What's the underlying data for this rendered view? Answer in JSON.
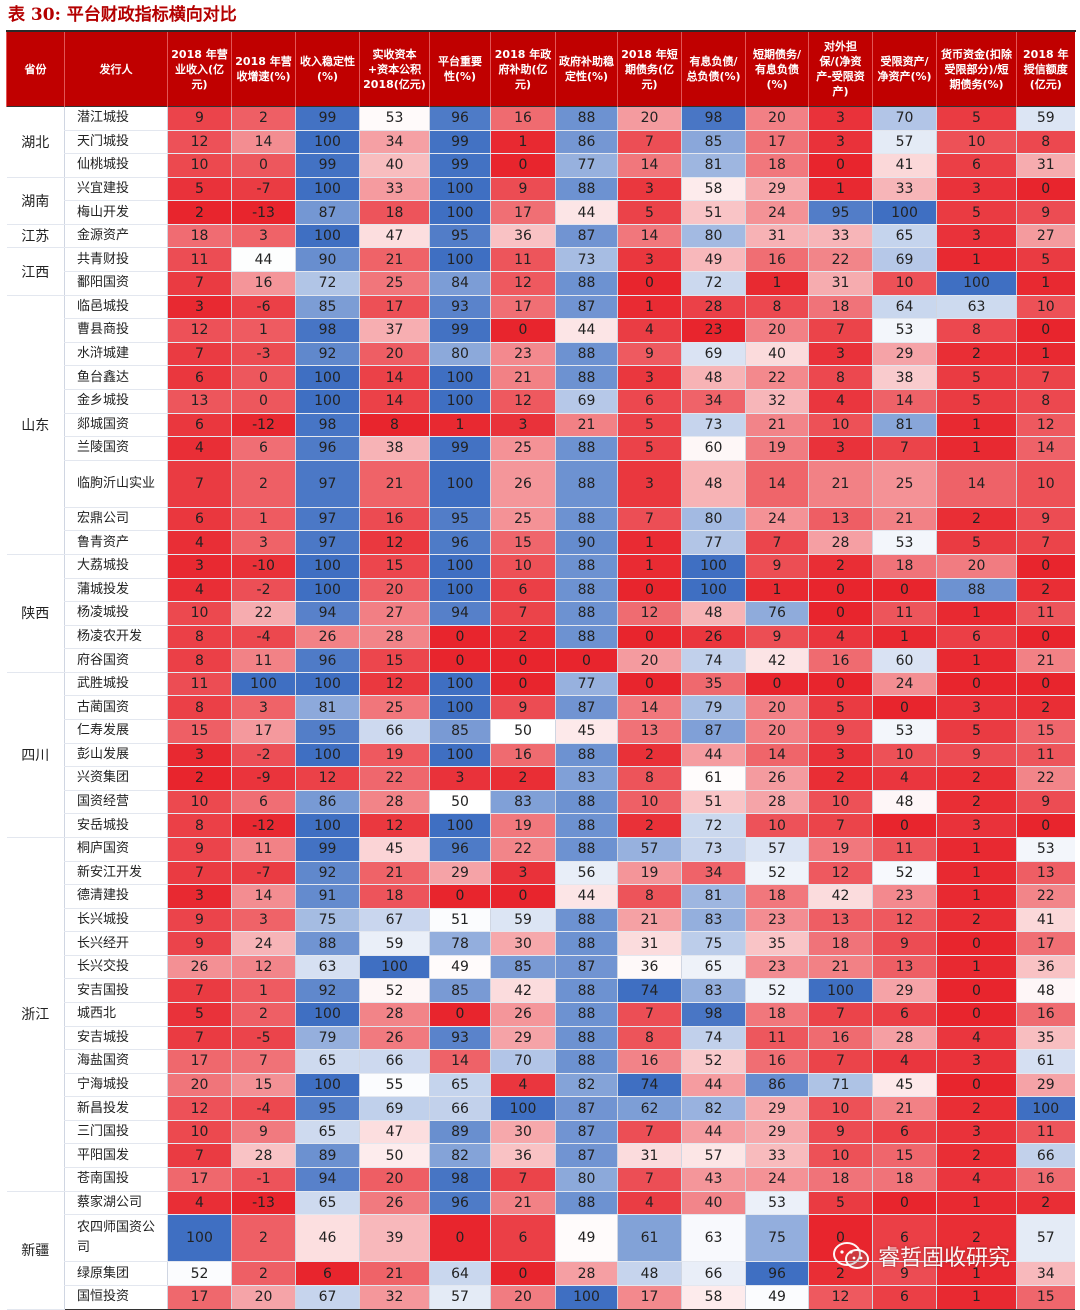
{
  "title": "表 30:  平台财政指标横向对比",
  "watermark": "睿哲固收研究",
  "colors": {
    "header_bg": "#c00000",
    "blue_max": "#3f6fc2",
    "red_max": "#e8252d"
  },
  "columns": [
    {
      "label": "省份"
    },
    {
      "label": "发行人"
    },
    {
      "label": "2018 年营业收入(亿元)"
    },
    {
      "label": "2018 年营收增速(%)"
    },
    {
      "label": "收入稳定性(%)"
    },
    {
      "label": "实收资本+资本公积 2018(亿元)"
    },
    {
      "label": "平台重要性(%)"
    },
    {
      "label": "2018 年政府补助(亿元)"
    },
    {
      "label": "政府补助稳定性(%)"
    },
    {
      "label": "2018 年短期债务(亿元)"
    },
    {
      "label": "有息负债/总负债(%)"
    },
    {
      "label": "短期债务/有息负债(%)"
    },
    {
      "label": "对外担保/(净资产-受限资产)"
    },
    {
      "label": "受限资产/净资产(%)"
    },
    {
      "label": "货币资金(扣除受限部分)/短期债务(%)"
    },
    {
      "label": "2018 年授信额度(亿元)"
    }
  ],
  "groups": [
    {
      "province": "湖北",
      "rows": [
        {
          "issuer": "潜江城投",
          "values": [
            9,
            2,
            99,
            53,
            96,
            16,
            88,
            20,
            98,
            20,
            3,
            70,
            5,
            59
          ]
        },
        {
          "issuer": "天门城投",
          "values": [
            12,
            14,
            100,
            34,
            99,
            1,
            86,
            7,
            85,
            17,
            3,
            57,
            10,
            8
          ]
        },
        {
          "issuer": "仙桃城投",
          "values": [
            10,
            0,
            99,
            40,
            99,
            0,
            77,
            14,
            81,
            18,
            0,
            41,
            6,
            31
          ]
        }
      ]
    },
    {
      "province": "湖南",
      "rows": [
        {
          "issuer": "兴宜建投",
          "values": [
            5,
            -7,
            100,
            33,
            100,
            9,
            88,
            3,
            58,
            29,
            1,
            33,
            3,
            0
          ]
        },
        {
          "issuer": "梅山开发",
          "values": [
            2,
            -13,
            87,
            18,
            100,
            17,
            44,
            5,
            51,
            24,
            95,
            100,
            5,
            9
          ]
        }
      ]
    },
    {
      "province": "江苏",
      "rows": [
        {
          "issuer": "金源资产",
          "values": [
            18,
            3,
            100,
            47,
            95,
            36,
            87,
            14,
            80,
            31,
            33,
            65,
            3,
            27
          ]
        }
      ]
    },
    {
      "province": "江西",
      "rows": [
        {
          "issuer": "共青财投",
          "values": [
            11,
            44,
            90,
            21,
            100,
            11,
            73,
            3,
            49,
            16,
            22,
            69,
            1,
            5
          ]
        },
        {
          "issuer": "鄱阳国资",
          "values": [
            7,
            16,
            72,
            25,
            84,
            12,
            88,
            0,
            72,
            1,
            31,
            10,
            100,
            1
          ]
        }
      ]
    },
    {
      "province": "山东",
      "rows": [
        {
          "issuer": "临邑城投",
          "values": [
            3,
            -6,
            85,
            17,
            93,
            17,
            87,
            1,
            28,
            8,
            18,
            64,
            63,
            10
          ]
        },
        {
          "issuer": "曹县商投",
          "values": [
            12,
            1,
            98,
            37,
            99,
            0,
            44,
            4,
            23,
            20,
            7,
            53,
            8,
            0
          ]
        },
        {
          "issuer": "水浒城建",
          "values": [
            7,
            -3,
            92,
            20,
            80,
            23,
            88,
            9,
            69,
            40,
            3,
            29,
            2,
            1
          ]
        },
        {
          "issuer": "鱼台鑫达",
          "values": [
            6,
            0,
            100,
            14,
            100,
            21,
            88,
            3,
            48,
            22,
            8,
            38,
            5,
            7
          ]
        },
        {
          "issuer": "金乡城投",
          "values": [
            13,
            0,
            100,
            14,
            100,
            12,
            69,
            6,
            34,
            32,
            4,
            14,
            5,
            8
          ]
        },
        {
          "issuer": "郯城国资",
          "values": [
            6,
            -12,
            98,
            8,
            1,
            3,
            21,
            5,
            73,
            21,
            10,
            81,
            1,
            12
          ]
        },
        {
          "issuer": "兰陵国资",
          "values": [
            4,
            6,
            96,
            38,
            99,
            25,
            88,
            5,
            60,
            19,
            3,
            7,
            1,
            14
          ]
        },
        {
          "issuer": "临朐沂山实业",
          "values": [
            7,
            2,
            97,
            21,
            100,
            26,
            88,
            3,
            48,
            14,
            21,
            25,
            14,
            10
          ]
        },
        {
          "issuer": "宏鼎公司",
          "values": [
            6,
            1,
            97,
            16,
            95,
            25,
            88,
            7,
            80,
            24,
            13,
            21,
            2,
            9
          ]
        },
        {
          "issuer": "鲁青资产",
          "values": [
            4,
            3,
            97,
            12,
            96,
            15,
            90,
            1,
            77,
            7,
            28,
            53,
            5,
            7
          ]
        }
      ]
    },
    {
      "province": "陕西",
      "rows": [
        {
          "issuer": "大荔城投",
          "values": [
            3,
            -10,
            100,
            15,
            100,
            10,
            88,
            1,
            100,
            9,
            2,
            18,
            20,
            0
          ]
        },
        {
          "issuer": "蒲城投发",
          "values": [
            4,
            -2,
            100,
            20,
            100,
            6,
            88,
            0,
            100,
            1,
            0,
            0,
            88,
            2
          ]
        },
        {
          "issuer": "杨凌城投",
          "values": [
            10,
            22,
            94,
            27,
            94,
            7,
            88,
            12,
            48,
            76,
            0,
            11,
            1,
            11
          ]
        },
        {
          "issuer": "杨凌农开发",
          "values": [
            8,
            -4,
            26,
            28,
            0,
            2,
            88,
            0,
            26,
            9,
            4,
            1,
            6,
            0
          ]
        },
        {
          "issuer": "府谷国资",
          "values": [
            8,
            11,
            96,
            15,
            0,
            0,
            0,
            20,
            74,
            42,
            16,
            60,
            1,
            21
          ]
        }
      ]
    },
    {
      "province": "四川",
      "rows": [
        {
          "issuer": "武胜城投",
          "values": [
            11,
            100,
            100,
            12,
            100,
            0,
            77,
            0,
            35,
            0,
            0,
            24,
            0,
            0
          ]
        },
        {
          "issuer": "古蔺国资",
          "values": [
            8,
            3,
            81,
            25,
            100,
            9,
            87,
            14,
            79,
            20,
            5,
            0,
            3,
            2
          ]
        },
        {
          "issuer": "仁寿发展",
          "values": [
            15,
            17,
            95,
            66,
            85,
            50,
            45,
            13,
            87,
            20,
            9,
            53,
            5,
            15
          ]
        },
        {
          "issuer": "彭山发展",
          "values": [
            3,
            -2,
            100,
            19,
            100,
            16,
            88,
            2,
            44,
            14,
            3,
            10,
            9,
            11
          ]
        },
        {
          "issuer": "兴资集团",
          "values": [
            2,
            -9,
            12,
            22,
            3,
            2,
            83,
            8,
            61,
            26,
            2,
            4,
            2,
            22
          ]
        },
        {
          "issuer": "国资经营",
          "values": [
            10,
            6,
            86,
            28,
            50,
            83,
            88,
            10,
            51,
            28,
            10,
            48,
            2,
            9
          ]
        },
        {
          "issuer": "安岳城投",
          "values": [
            8,
            -12,
            100,
            12,
            100,
            19,
            88,
            2,
            72,
            10,
            7,
            0,
            3,
            0
          ]
        }
      ]
    },
    {
      "province": "浙江",
      "rows": [
        {
          "issuer": "桐庐国资",
          "values": [
            9,
            11,
            99,
            45,
            96,
            22,
            88,
            57,
            73,
            57,
            19,
            11,
            1,
            53
          ]
        },
        {
          "issuer": "新安江开发",
          "values": [
            7,
            -7,
            92,
            21,
            29,
            3,
            56,
            19,
            34,
            52,
            12,
            52,
            1,
            13
          ]
        },
        {
          "issuer": "德清建投",
          "values": [
            3,
            14,
            91,
            18,
            0,
            0,
            44,
            8,
            81,
            18,
            42,
            23,
            1,
            22
          ]
        },
        {
          "issuer": "长兴城投",
          "values": [
            9,
            3,
            75,
            67,
            51,
            59,
            88,
            21,
            83,
            23,
            13,
            12,
            2,
            41
          ]
        },
        {
          "issuer": "长兴经开",
          "values": [
            9,
            24,
            88,
            59,
            78,
            30,
            88,
            31,
            75,
            35,
            18,
            9,
            0,
            17
          ]
        },
        {
          "issuer": "长兴交投",
          "values": [
            26,
            12,
            63,
            100,
            49,
            85,
            87,
            36,
            65,
            23,
            21,
            13,
            1,
            36
          ]
        },
        {
          "issuer": "安吉国投",
          "values": [
            7,
            1,
            92,
            52,
            85,
            42,
            88,
            74,
            83,
            52,
            100,
            29,
            0,
            48
          ]
        },
        {
          "issuer": "城西北",
          "values": [
            5,
            2,
            100,
            28,
            0,
            26,
            88,
            7,
            98,
            18,
            7,
            6,
            0,
            16
          ]
        },
        {
          "issuer": "安吉城投",
          "values": [
            7,
            -5,
            79,
            26,
            93,
            29,
            88,
            8,
            74,
            11,
            16,
            28,
            4,
            35
          ]
        },
        {
          "issuer": "海盐国资",
          "values": [
            17,
            7,
            65,
            66,
            14,
            70,
            88,
            16,
            52,
            16,
            7,
            4,
            3,
            61
          ]
        },
        {
          "issuer": "宁海城投",
          "values": [
            20,
            15,
            100,
            55,
            65,
            4,
            82,
            74,
            44,
            86,
            71,
            45,
            0,
            29
          ]
        },
        {
          "issuer": "新昌投发",
          "values": [
            12,
            -4,
            95,
            69,
            66,
            100,
            87,
            62,
            82,
            29,
            10,
            21,
            2,
            100
          ]
        },
        {
          "issuer": "三门国投",
          "values": [
            10,
            9,
            65,
            47,
            89,
            30,
            87,
            7,
            44,
            29,
            9,
            6,
            3,
            11
          ]
        },
        {
          "issuer": "平阳国发",
          "values": [
            7,
            28,
            89,
            50,
            82,
            36,
            87,
            31,
            57,
            33,
            10,
            15,
            2,
            66
          ]
        },
        {
          "issuer": "苍南国投",
          "values": [
            17,
            -1,
            94,
            20,
            98,
            7,
            80,
            7,
            43,
            24,
            18,
            18,
            4,
            16
          ]
        }
      ]
    },
    {
      "province": "新疆",
      "rows": [
        {
          "issuer": "蔡家湖公司",
          "values": [
            4,
            -13,
            65,
            26,
            96,
            21,
            88,
            4,
            40,
            53,
            5,
            0,
            1,
            2
          ]
        },
        {
          "issuer": "农四师国资公司",
          "values": [
            100,
            2,
            46,
            39,
            0,
            6,
            49,
            61,
            63,
            75,
            0,
            6,
            2,
            57
          ]
        },
        {
          "issuer": "绿原集团",
          "values": [
            52,
            2,
            6,
            21,
            64,
            0,
            28,
            48,
            66,
            96,
            2,
            9,
            1,
            34
          ]
        },
        {
          "issuer": "国恒投资",
          "values": [
            17,
            20,
            67,
            32,
            57,
            20,
            100,
            17,
            58,
            49,
            12,
            6,
            1,
            15
          ]
        }
      ]
    }
  ]
}
